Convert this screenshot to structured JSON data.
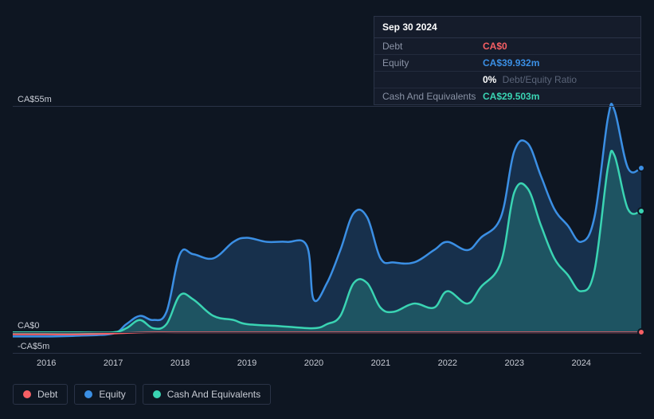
{
  "tooltip": {
    "date": "Sep 30 2024",
    "rows": [
      {
        "label": "Debt",
        "value": "CA$0",
        "color": "#f75f64"
      },
      {
        "label": "Equity",
        "value": "CA$39.932m",
        "color": "#3b8fe4"
      },
      {
        "label": "",
        "value": "0%",
        "color": "#ffffff",
        "suffix": " Debt/Equity Ratio"
      },
      {
        "label": "Cash And Equivalents",
        "value": "CA$29.503m",
        "color": "#3ad4b3"
      }
    ]
  },
  "chart": {
    "type": "area",
    "background_color": "#0e1622",
    "grid_color": "#2a3347",
    "y_labels": [
      {
        "text": "CA$55m",
        "value": 55
      },
      {
        "text": "CA$0",
        "value": 0
      },
      {
        "text": "-CA$5m",
        "value": -5
      }
    ],
    "ylim": [
      -5,
      57
    ],
    "x_ticks": [
      "2016",
      "2017",
      "2018",
      "2019",
      "2020",
      "2021",
      "2022",
      "2023",
      "2024"
    ],
    "xlim": [
      2015.5,
      2024.9
    ],
    "series": {
      "debt": {
        "color": "#f75f64",
        "fill_opacity": 0.15,
        "stroke_width": 2,
        "points": [
          [
            2015.5,
            -0.5
          ],
          [
            2016.0,
            -0.5
          ],
          [
            2016.5,
            -0.5
          ],
          [
            2017.0,
            -0.3
          ],
          [
            2017.5,
            0
          ],
          [
            2018.0,
            0
          ],
          [
            2019.0,
            0
          ],
          [
            2020.0,
            0
          ],
          [
            2021.0,
            0
          ],
          [
            2022.0,
            0
          ],
          [
            2023.0,
            0
          ],
          [
            2024.0,
            0
          ],
          [
            2024.9,
            0
          ]
        ]
      },
      "equity": {
        "color": "#3b8fe4",
        "fill_opacity": 0.22,
        "stroke_width": 2.5,
        "points": [
          [
            2015.5,
            -1
          ],
          [
            2016.0,
            -1
          ],
          [
            2016.5,
            -0.8
          ],
          [
            2017.0,
            -0.3
          ],
          [
            2017.2,
            2
          ],
          [
            2017.4,
            4
          ],
          [
            2017.6,
            3
          ],
          [
            2017.8,
            5
          ],
          [
            2018.0,
            19
          ],
          [
            2018.2,
            19
          ],
          [
            2018.5,
            18
          ],
          [
            2018.8,
            22
          ],
          [
            2019.0,
            23
          ],
          [
            2019.3,
            22
          ],
          [
            2019.6,
            22
          ],
          [
            2019.9,
            21
          ],
          [
            2020.0,
            8
          ],
          [
            2020.2,
            12
          ],
          [
            2020.4,
            20
          ],
          [
            2020.6,
            29
          ],
          [
            2020.8,
            28
          ],
          [
            2021.0,
            18
          ],
          [
            2021.2,
            17
          ],
          [
            2021.5,
            17
          ],
          [
            2021.8,
            20
          ],
          [
            2022.0,
            22
          ],
          [
            2022.3,
            20
          ],
          [
            2022.5,
            23
          ],
          [
            2022.8,
            28
          ],
          [
            2023.0,
            44
          ],
          [
            2023.2,
            46
          ],
          [
            2023.4,
            38
          ],
          [
            2023.6,
            30
          ],
          [
            2023.8,
            26
          ],
          [
            2024.0,
            22
          ],
          [
            2024.2,
            28
          ],
          [
            2024.4,
            52
          ],
          [
            2024.5,
            54
          ],
          [
            2024.7,
            40
          ],
          [
            2024.9,
            40
          ]
        ]
      },
      "cash": {
        "color": "#3ad4b3",
        "fill_opacity": 0.22,
        "stroke_width": 2.5,
        "points": [
          [
            2015.5,
            0
          ],
          [
            2016.5,
            0
          ],
          [
            2017.0,
            0
          ],
          [
            2017.2,
            1
          ],
          [
            2017.4,
            3
          ],
          [
            2017.6,
            1
          ],
          [
            2017.8,
            2
          ],
          [
            2018.0,
            9
          ],
          [
            2018.2,
            8
          ],
          [
            2018.5,
            4
          ],
          [
            2018.8,
            3
          ],
          [
            2019.0,
            2
          ],
          [
            2019.5,
            1.5
          ],
          [
            2020.0,
            1
          ],
          [
            2020.2,
            2
          ],
          [
            2020.4,
            4
          ],
          [
            2020.6,
            12
          ],
          [
            2020.8,
            12
          ],
          [
            2021.0,
            6
          ],
          [
            2021.2,
            5
          ],
          [
            2021.5,
            7
          ],
          [
            2021.8,
            6
          ],
          [
            2022.0,
            10
          ],
          [
            2022.3,
            7
          ],
          [
            2022.5,
            11
          ],
          [
            2022.8,
            17
          ],
          [
            2023.0,
            34
          ],
          [
            2023.2,
            35
          ],
          [
            2023.4,
            26
          ],
          [
            2023.6,
            18
          ],
          [
            2023.8,
            14
          ],
          [
            2024.0,
            10
          ],
          [
            2024.2,
            15
          ],
          [
            2024.4,
            40
          ],
          [
            2024.5,
            43
          ],
          [
            2024.7,
            30
          ],
          [
            2024.9,
            29.5
          ]
        ]
      }
    },
    "markers": [
      {
        "series": "debt",
        "x": 2024.9,
        "y": 0
      },
      {
        "series": "equity",
        "x": 2024.9,
        "y": 40
      },
      {
        "series": "cash",
        "x": 2024.9,
        "y": 29.5
      }
    ]
  },
  "legend": [
    {
      "label": "Debt",
      "color": "#f75f64"
    },
    {
      "label": "Equity",
      "color": "#3b8fe4"
    },
    {
      "label": "Cash And Equivalents",
      "color": "#3ad4b3"
    }
  ]
}
